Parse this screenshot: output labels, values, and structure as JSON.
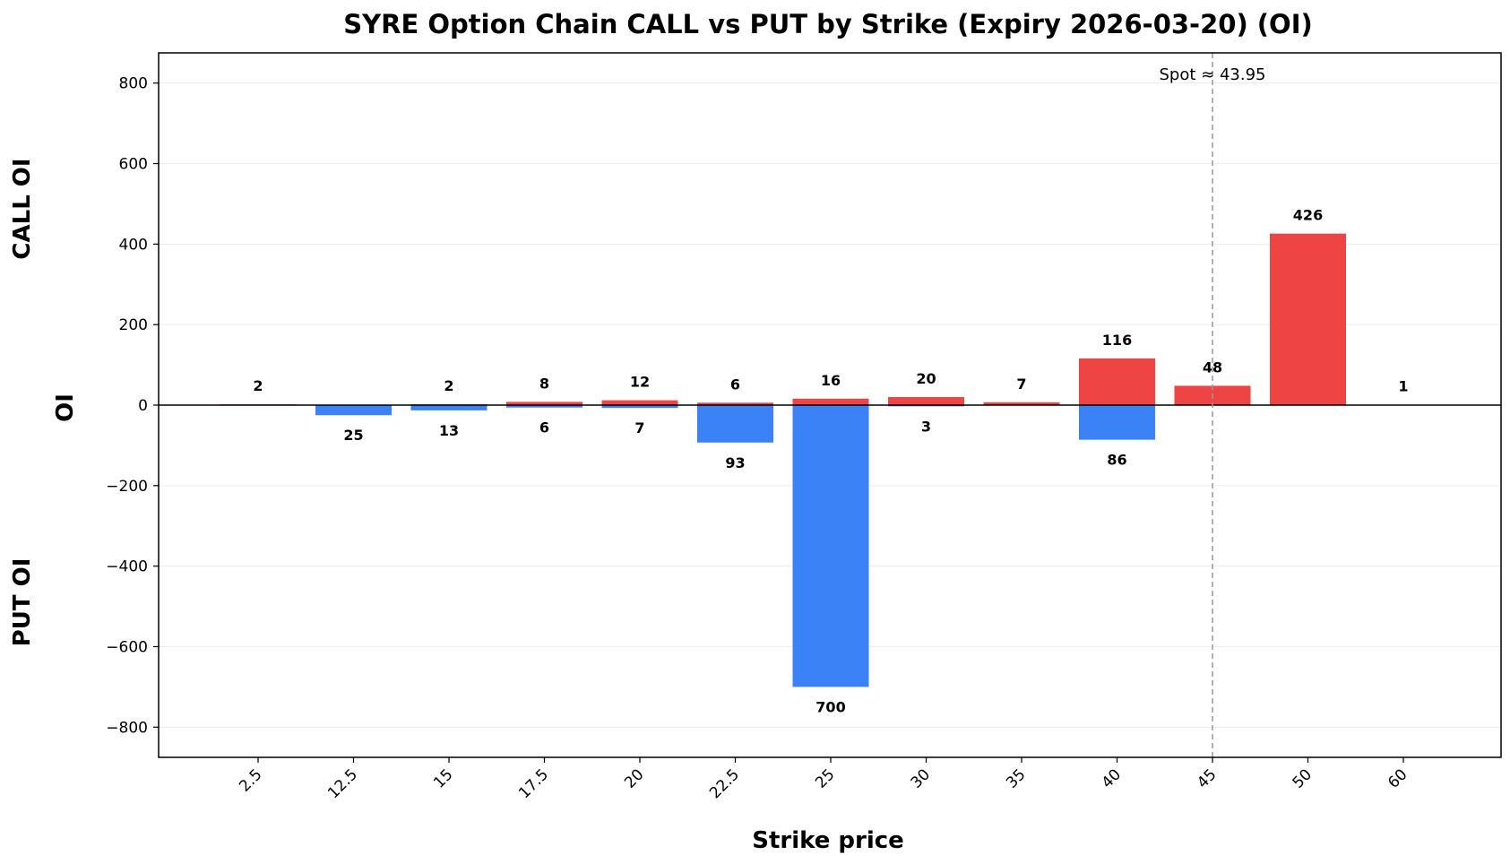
{
  "chart_data": {
    "type": "bar",
    "title": "SYRE Option Chain CALL vs PUT by Strike (Expiry 2026-03-20) (OI)",
    "xlabel": "Strike price",
    "ylabel": "OI",
    "side_labels": {
      "top": "CALL OI",
      "bottom": "PUT OI"
    },
    "categories": [
      "2.5",
      "12.5",
      "15",
      "17.5",
      "20",
      "22.5",
      "25",
      "30",
      "35",
      "40",
      "45",
      "50",
      "60"
    ],
    "ylim": [
      -875,
      875
    ],
    "yticks": [
      800,
      600,
      400,
      200,
      0,
      -200,
      -400,
      -600,
      -800
    ],
    "ytick_labels": [
      "800",
      "600",
      "400",
      "200",
      "0",
      "−200",
      "−400",
      "−600",
      "−800"
    ],
    "grid": true,
    "series": [
      {
        "values": [
          2,
          0,
          2,
          8,
          12,
          6,
          16,
          20,
          7,
          116,
          48,
          426,
          1
        ],
        "labels": [
          "2",
          "",
          "2",
          "8",
          "12",
          "6",
          "16",
          "20",
          "7",
          "116",
          "48",
          "426",
          "1"
        ],
        "color": "#ef4444"
      },
      {
        "values": [
          0,
          -25,
          -13,
          -6,
          -7,
          -93,
          -700,
          -3,
          0,
          -86,
          0,
          0,
          0
        ],
        "labels": [
          "",
          "25",
          "13",
          "6",
          "7",
          "93",
          "700",
          "3",
          "",
          "86",
          "",
          "",
          ""
        ],
        "color": "#3b82f6"
      }
    ],
    "spot": {
      "value": 43.95,
      "category_position": 10,
      "label": "Spot ≈ 43.95",
      "color": "#999999"
    },
    "zero_line_color": "#000000",
    "grid_color": "#ececec"
  }
}
